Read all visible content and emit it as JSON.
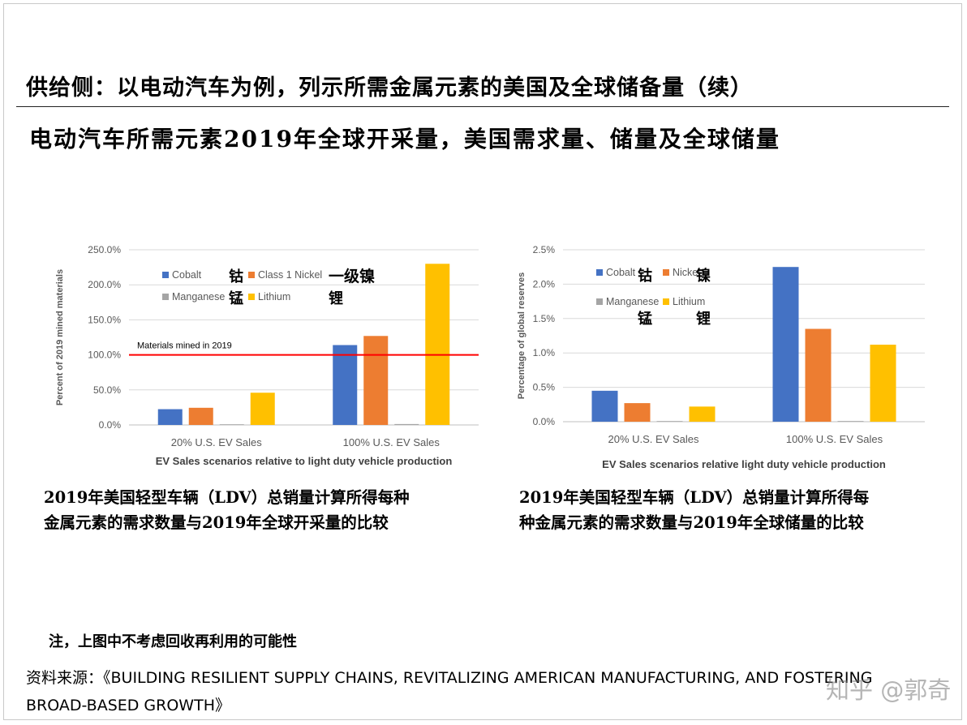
{
  "header": {
    "title": "供给侧：以电动汽车为例，列示所需金属元素的美国及全球储备量（续）",
    "subtitle": "电动汽车所需元素2019年全球开采量，美国需求量、储量及全球储量"
  },
  "colors": {
    "cobalt": "#4472c4",
    "nickel": "#ed7d31",
    "manganese": "#a5a5a5",
    "lithium": "#ffc000",
    "reference_line": "#ff0000",
    "gridline": "#d9d9d9"
  },
  "chart_data": [
    {
      "type": "bar",
      "categories": [
        "20% U.S. EV Sales",
        "100% U.S. EV Sales"
      ],
      "series": [
        {
          "name": "Cobalt",
          "cn_label": "钴",
          "values": [
            22.5,
            114
          ]
        },
        {
          "name": "Class 1 Nickel",
          "cn_label": "一级镍",
          "values": [
            24.5,
            127
          ]
        },
        {
          "name": "Manganese",
          "cn_label": "锰",
          "values": [
            0.3,
            1.3
          ]
        },
        {
          "name": "Lithium",
          "cn_label": "锂",
          "values": [
            46,
            230
          ]
        }
      ],
      "ylim": [
        0,
        250
      ],
      "yticks": [
        "0.0%",
        "50.0%",
        "100.0%",
        "150.0%",
        "200.0%",
        "250.0%"
      ],
      "ylabel": "Percent of 2019 mined materials",
      "xlabel": "EV Sales scenarios relative to light duty vehicle production",
      "reference_line": {
        "value": 100,
        "label": "Materials mined in 2019"
      },
      "legend": "top-left",
      "grid": true
    },
    {
      "type": "bar",
      "categories": [
        "20% U.S. EV Sales",
        "100% U.S. EV Sales"
      ],
      "series": [
        {
          "name": "Cobalt",
          "cn_label": "钴",
          "values": [
            0.45,
            2.25
          ]
        },
        {
          "name": "Nickel",
          "cn_label": "镍",
          "values": [
            0.27,
            1.35
          ]
        },
        {
          "name": "Manganese",
          "cn_label": "锰",
          "values": [
            0.005,
            0.01
          ]
        },
        {
          "name": "Lithium",
          "cn_label": "锂",
          "values": [
            0.22,
            1.12
          ]
        }
      ],
      "ylim": [
        0,
        2.5
      ],
      "yticks": [
        "0.0%",
        "0.5%",
        "1.0%",
        "1.5%",
        "2.0%",
        "2.5%"
      ],
      "ylabel": "Percentage of global reserves",
      "xlabel": "EV Sales scenarios relative light duty vehicle production",
      "legend": "top-left",
      "grid": true
    }
  ],
  "captions": {
    "left": [
      "2019年美国轻型车辆（LDV）总销量计算所得每种",
      "金属元素的需求数量与2019年全球开采量的比较"
    ],
    "right": [
      "2019年美国轻型车辆（LDV）总销量计算所得每",
      "种金属元素的需求数量与2019年全球储量的比较"
    ]
  },
  "note": "注，上图中不考虑回收再利用的可能性",
  "source": [
    "资料来源：《BUILDING RESILIENT SUPPLY CHAINS, REVITALIZING AMERICAN MANUFACTURING, AND FOSTERING",
    "BROAD-BASED GROWTH》"
  ],
  "watermark": "知乎 @郭奇"
}
